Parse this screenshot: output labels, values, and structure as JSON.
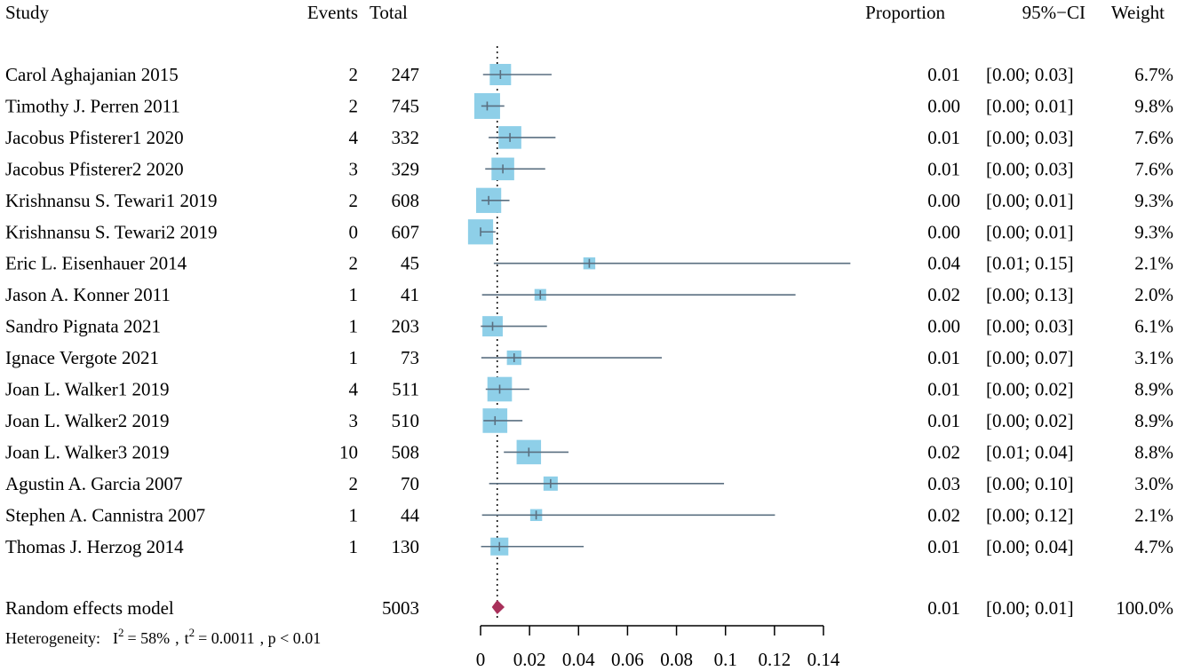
{
  "chart_data": {
    "type": "forest",
    "headers": {
      "study": "Study",
      "events": "Events",
      "total": "Total",
      "proportion": "Proportion",
      "ci": "95%−CI",
      "weight": "Weight"
    },
    "studies": [
      {
        "name": "Carol Aghajanian 2015",
        "events": "2",
        "total": "247",
        "prop_label": "0.01",
        "ci_label": "[0.00; 0.03]",
        "weight_label": "6.7%",
        "est": 0.0081,
        "lo": 0.001,
        "hi": 0.029,
        "weight": 6.7
      },
      {
        "name": "Timothy J. Perren 2011",
        "events": "2",
        "total": "745",
        "prop_label": "0.00",
        "ci_label": "[0.00; 0.01]",
        "weight_label": "9.8%",
        "est": 0.0027,
        "lo": 0.0003,
        "hi": 0.0097,
        "weight": 9.8
      },
      {
        "name": "Jacobus Pfisterer1 2020",
        "events": "4",
        "total": "332",
        "prop_label": "0.01",
        "ci_label": "[0.00; 0.03]",
        "weight_label": "7.6%",
        "est": 0.012,
        "lo": 0.0033,
        "hi": 0.0306,
        "weight": 7.6
      },
      {
        "name": "Jacobus Pfisterer2 2020",
        "events": "3",
        "total": "329",
        "prop_label": "0.01",
        "ci_label": "[0.00; 0.03]",
        "weight_label": "7.6%",
        "est": 0.0091,
        "lo": 0.0019,
        "hi": 0.0264,
        "weight": 7.6
      },
      {
        "name": "Krishnansu S. Tewari1 2019",
        "events": "2",
        "total": "608",
        "prop_label": "0.00",
        "ci_label": "[0.00; 0.01]",
        "weight_label": "9.3%",
        "est": 0.0033,
        "lo": 0.0004,
        "hi": 0.0118,
        "weight": 9.3
      },
      {
        "name": "Krishnansu S. Tewari2 2019",
        "events": "0",
        "total": "607",
        "prop_label": "0.00",
        "ci_label": "[0.00; 0.01]",
        "weight_label": "9.3%",
        "est": 0.0,
        "lo": 0.0,
        "hi": 0.0061,
        "weight": 9.3
      },
      {
        "name": "Eric L. Eisenhauer 2014",
        "events": "2",
        "total": "45",
        "prop_label": "0.04",
        "ci_label": "[0.01; 0.15]",
        "weight_label": "2.1%",
        "est": 0.0444,
        "lo": 0.0054,
        "hi": 0.151,
        "weight": 2.1
      },
      {
        "name": "Jason A. Konner 2011",
        "events": "1",
        "total": "41",
        "prop_label": "0.02",
        "ci_label": "[0.00; 0.13]",
        "weight_label": "2.0%",
        "est": 0.0244,
        "lo": 0.0006,
        "hi": 0.1286,
        "weight": 2.0
      },
      {
        "name": "Sandro Pignata 2021",
        "events": "1",
        "total": "203",
        "prop_label": "0.00",
        "ci_label": "[0.00; 0.03]",
        "weight_label": "6.1%",
        "est": 0.0049,
        "lo": 0.0001,
        "hi": 0.0271,
        "weight": 6.1
      },
      {
        "name": "Ignace Vergote 2021",
        "events": "1",
        "total": "73",
        "prop_label": "0.01",
        "ci_label": "[0.00; 0.07]",
        "weight_label": "3.1%",
        "est": 0.0137,
        "lo": 0.0003,
        "hi": 0.074,
        "weight": 3.1
      },
      {
        "name": "Joan L. Walker1 2019",
        "events": "4",
        "total": "511",
        "prop_label": "0.01",
        "ci_label": "[0.00; 0.02]",
        "weight_label": "8.9%",
        "est": 0.0078,
        "lo": 0.0021,
        "hi": 0.0199,
        "weight": 8.9
      },
      {
        "name": "Joan L. Walker2 2019",
        "events": "3",
        "total": "510",
        "prop_label": "0.01",
        "ci_label": "[0.00; 0.02]",
        "weight_label": "8.9%",
        "est": 0.0059,
        "lo": 0.0012,
        "hi": 0.0171,
        "weight": 8.9
      },
      {
        "name": "Joan L. Walker3 2019",
        "events": "10",
        "total": "508",
        "prop_label": "0.02",
        "ci_label": "[0.01; 0.04]",
        "weight_label": "8.8%",
        "est": 0.0197,
        "lo": 0.0095,
        "hi": 0.0359,
        "weight": 8.8
      },
      {
        "name": "Agustin A. Garcia 2007",
        "events": "2",
        "total": "70",
        "prop_label": "0.03",
        "ci_label": "[0.00; 0.10]",
        "weight_label": "3.0%",
        "est": 0.0286,
        "lo": 0.0035,
        "hi": 0.0994,
        "weight": 3.0
      },
      {
        "name": "Stephen A. Cannistra 2007",
        "events": "1",
        "total": "44",
        "prop_label": "0.02",
        "ci_label": "[0.00; 0.12]",
        "weight_label": "2.1%",
        "est": 0.0227,
        "lo": 0.0006,
        "hi": 0.1202,
        "weight": 2.1
      },
      {
        "name": "Thomas J. Herzog 2014",
        "events": "1",
        "total": "130",
        "prop_label": "0.01",
        "ci_label": "[0.00; 0.04]",
        "weight_label": "4.7%",
        "est": 0.0077,
        "lo": 0.0002,
        "hi": 0.0421,
        "weight": 4.7
      }
    ],
    "pooled": {
      "name": "Random effects model",
      "total": "5003",
      "prop_label": "0.01",
      "ci_label": "[0.00; 0.01]",
      "weight_label": "100.0%",
      "est": 0.0068,
      "lo": 0.0046,
      "hi": 0.0098
    },
    "heterogeneity": {
      "label": "Heterogeneity:",
      "i2_letter": "I",
      "i2_value": "= 58%",
      "t2_letter": "t",
      "t2_value": "= 0.0011",
      "p_value": ", p < 0.01"
    },
    "x_axis": {
      "range": [
        0,
        0.14
      ],
      "ticks": [
        0,
        0.02,
        0.04,
        0.06,
        0.08,
        0.1,
        0.12,
        0.14
      ],
      "tick_labels": [
        "0",
        "0.02",
        "0.04",
        "0.06",
        "0.08",
        "0.1",
        "0.12",
        "0.14"
      ]
    },
    "reference_line": 0.0068,
    "colors": {
      "box": "#8ecfe8",
      "ci_line": "#5a6f80",
      "diamond": "#a8305a",
      "axis": "#000000"
    }
  }
}
